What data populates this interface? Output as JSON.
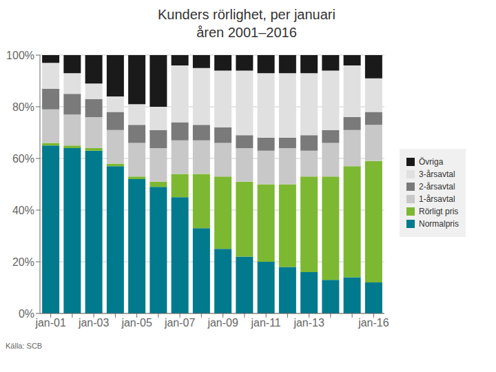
{
  "chart_data": {
    "type": "bar",
    "stacked": true,
    "title": "Kunders rörlighet, per januari\nåren 2001–2016",
    "annotations": [
      "Källa: SCB"
    ],
    "categories": [
      "jan-01",
      null,
      "jan-03",
      null,
      "jan-05",
      null,
      "jan-07",
      null,
      "jan-09",
      null,
      "jan-11",
      null,
      "jan-13",
      null,
      null,
      "jan-16"
    ],
    "series": [
      {
        "name": "Normalpris",
        "color": "#007a8c",
        "values": [
          65,
          64,
          63,
          57,
          52,
          49,
          45,
          33,
          25,
          22,
          20,
          18,
          16,
          13,
          14,
          12
        ]
      },
      {
        "name": "Rörligt pris",
        "color": "#7cb832",
        "values": [
          1,
          1,
          1,
          1,
          1,
          2,
          9,
          21,
          28,
          29,
          30,
          32,
          37,
          40,
          43,
          47
        ]
      },
      {
        "name": "1-årsavtal",
        "color": "#c8c8c8",
        "values": [
          13,
          12,
          12,
          13,
          13,
          13,
          13,
          13,
          13,
          13,
          13,
          14,
          10,
          13,
          14,
          14
        ]
      },
      {
        "name": "2-årsavtal",
        "color": "#7a7a7a",
        "values": [
          8,
          8,
          7,
          7,
          7,
          7,
          7,
          6,
          6,
          5,
          5,
          4,
          6,
          5,
          5,
          5
        ]
      },
      {
        "name": "3-årsavtal",
        "color": "#e0e0e0",
        "values": [
          10,
          8,
          6,
          6,
          8,
          9,
          22,
          22,
          22,
          25,
          25,
          25,
          24,
          23,
          20,
          13
        ]
      },
      {
        "name": "Övriga",
        "color": "#1a1a1a",
        "values": [
          3,
          7,
          11,
          16,
          19,
          20,
          4,
          5,
          6,
          6,
          7,
          7,
          7,
          6,
          4,
          9
        ]
      }
    ],
    "ylim": [
      0,
      100
    ],
    "yticks": [
      {
        "value": 0,
        "label": "0%"
      },
      {
        "value": 20,
        "label": "20%"
      },
      {
        "value": 40,
        "label": "40%"
      },
      {
        "value": 60,
        "label": "60%"
      },
      {
        "value": 80,
        "label": "80%"
      },
      {
        "value": 100,
        "label": "100%"
      }
    ],
    "grid": true,
    "legend": "right"
  }
}
